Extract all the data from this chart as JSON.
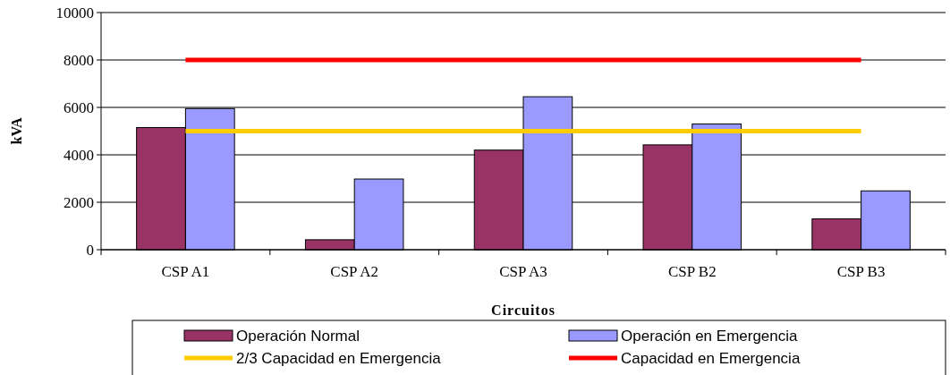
{
  "chart_data": {
    "type": "bar",
    "xlabel": "Circuitos",
    "ylabel": "kVA",
    "categories": [
      "CSP  A1",
      "CSP  A2",
      "CSP  A3",
      "CSP  B2",
      "CSP  B3"
    ],
    "series": [
      {
        "name": "Operación Normal",
        "color": "#993366",
        "values": [
          5150,
          420,
          4200,
          4420,
          1300
        ]
      },
      {
        "name": "Operación en Emergencia",
        "color": "#9999ff",
        "values": [
          5950,
          2980,
          6450,
          5300,
          2480
        ]
      },
      {
        "name": "2/3 Capacidad en Emergencia",
        "type": "line",
        "color": "#ffcc00",
        "values": [
          5000,
          5000,
          5000,
          5000,
          5000
        ]
      },
      {
        "name": "Capacidad en Emergencia",
        "type": "line",
        "color": "#ff0000",
        "values": [
          8000,
          8000,
          8000,
          8000,
          8000
        ]
      }
    ],
    "ylim": [
      0,
      10000
    ],
    "yticks": [
      0,
      2000,
      4000,
      6000,
      8000,
      10000
    ],
    "grid": "y",
    "legend": "bottom"
  }
}
